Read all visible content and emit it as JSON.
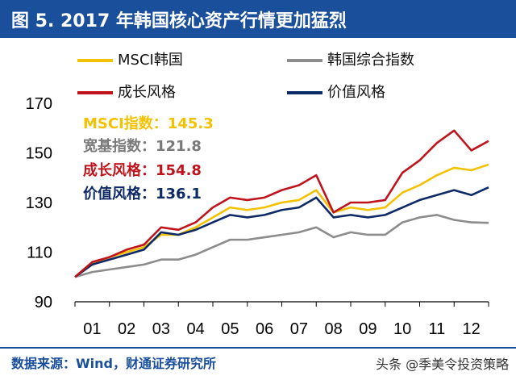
{
  "title": "图 5. 2017 年韩国核心资产行情更加猛烈",
  "legend": [
    {
      "label": "MSCI韩国",
      "color": "#f2c200"
    },
    {
      "label": "韩国综合指数",
      "color": "#8c8c8c"
    },
    {
      "label": "成长风格",
      "color": "#c0141c"
    },
    {
      "label": "价值风格",
      "color": "#0e2a66"
    }
  ],
  "annotations": [
    {
      "label": "MSCI指数：",
      "value": "145.3",
      "color": "#f2c200"
    },
    {
      "label": "宽基指数：",
      "value": "121.8",
      "color": "#7a7a7a"
    },
    {
      "label": "成长风格：",
      "value": "154.8",
      "color": "#c0141c"
    },
    {
      "label": "价值风格：",
      "value": "136.1",
      "color": "#0e2a66"
    }
  ],
  "source": "数据来源：Wind，财通证券研究所",
  "watermark": "头条 @季美令投资策略",
  "chart_data": {
    "type": "line",
    "x": [
      1,
      1.5,
      2,
      2.5,
      3,
      3.5,
      4,
      4.5,
      5,
      5.5,
      6,
      6.5,
      7,
      7.5,
      8,
      8.5,
      9,
      9.5,
      10,
      10.5,
      11,
      11.5,
      12,
      12.5,
      13
    ],
    "xticks": [
      "01",
      "02",
      "03",
      "04",
      "05",
      "06",
      "07",
      "08",
      "09",
      "10",
      "11",
      "12"
    ],
    "ylim": [
      90,
      170
    ],
    "yticks": [
      90,
      110,
      130,
      150,
      170
    ],
    "series": [
      {
        "name": "MSCI韩国",
        "color": "#f2c200",
        "values": [
          100,
          105,
          108,
          110,
          112,
          117,
          117,
          120,
          124,
          128,
          127,
          128,
          130,
          131,
          135,
          126,
          128,
          127,
          128,
          134,
          137,
          141,
          144,
          143,
          145.3
        ]
      },
      {
        "name": "韩国综合指数",
        "color": "#8c8c8c",
        "values": [
          100,
          102,
          103,
          104,
          105,
          107,
          107,
          109,
          112,
          115,
          115,
          116,
          117,
          118,
          120,
          116,
          118,
          117,
          117,
          122,
          124,
          125,
          123,
          122,
          121.8
        ]
      },
      {
        "name": "成长风格",
        "color": "#c0141c",
        "values": [
          100,
          106,
          108,
          111,
          113,
          120,
          119,
          122,
          128,
          132,
          131,
          132,
          135,
          137,
          141,
          126,
          130,
          130,
          131,
          142,
          147,
          154,
          159,
          151,
          154.8
        ]
      },
      {
        "name": "价值风格",
        "color": "#0e2a66",
        "values": [
          100,
          105,
          107,
          109,
          111,
          118,
          117,
          119,
          122,
          125,
          124,
          125,
          127,
          128,
          132,
          124,
          125,
          124,
          125,
          128,
          131,
          133,
          135,
          133,
          136.1
        ]
      }
    ]
  }
}
